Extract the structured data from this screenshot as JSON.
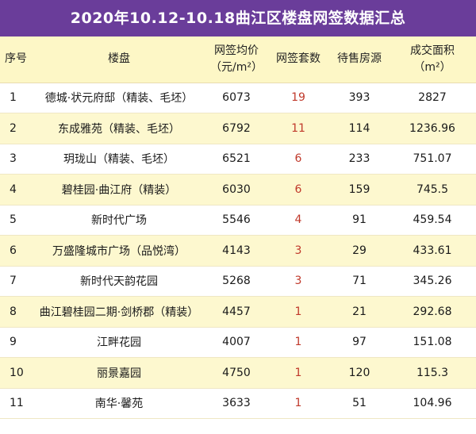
{
  "title": "2020年10.12-10.18曲江区楼盘网签数据汇总",
  "headers": {
    "index": "序号",
    "project": "楼盘",
    "price_line1": "网签均价",
    "price_line2": "（元/m²）",
    "sets": "网签套数",
    "stock": "待售房源",
    "area_line1": "成交面积",
    "area_line2": "（m²）"
  },
  "rows": [
    {
      "index": "1",
      "project": "德城·状元府邸（精装、毛坯）",
      "price": "6073",
      "sets": "19",
      "stock": "393",
      "area": "2827"
    },
    {
      "index": "2",
      "project": "东成雅苑（精装、毛坯）",
      "price": "6792",
      "sets": "11",
      "stock": "114",
      "area": "1236.96"
    },
    {
      "index": "3",
      "project": "玥珑山（精装、毛坯）",
      "price": "6521",
      "sets": "6",
      "stock": "233",
      "area": "751.07"
    },
    {
      "index": "4",
      "project": "碧桂园·曲江府（精装）",
      "price": "6030",
      "sets": "6",
      "stock": "159",
      "area": "745.5"
    },
    {
      "index": "5",
      "project": "新时代广场",
      "price": "5546",
      "sets": "4",
      "stock": "91",
      "area": "459.54"
    },
    {
      "index": "6",
      "project": "万盛隆城市广场（品悦湾）",
      "price": "4143",
      "sets": "3",
      "stock": "29",
      "area": "433.61"
    },
    {
      "index": "7",
      "project": "新时代天韵花园",
      "price": "5268",
      "sets": "3",
      "stock": "71",
      "area": "345.26"
    },
    {
      "index": "8",
      "project": "曲江碧桂园二期·剑桥郡（精装）",
      "price": "4457",
      "sets": "1",
      "stock": "21",
      "area": "292.68"
    },
    {
      "index": "9",
      "project": "江畔花园",
      "price": "4007",
      "sets": "1",
      "stock": "97",
      "area": "151.08"
    },
    {
      "index": "10",
      "project": "丽景嘉园",
      "price": "4750",
      "sets": "1",
      "stock": "120",
      "area": "115.3"
    },
    {
      "index": "11",
      "project": "南华·馨苑",
      "price": "3633",
      "sets": "1",
      "stock": "51",
      "area": "104.96"
    }
  ],
  "colors": {
    "title_bg": "#6a3d9a",
    "stripe": "#fdf8cf",
    "sets_text": "#c0392b"
  }
}
